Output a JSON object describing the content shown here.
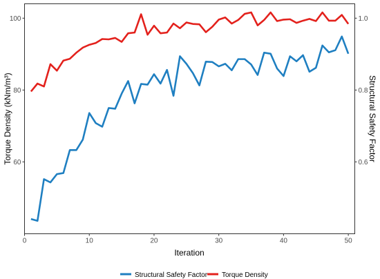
{
  "chart_data": {
    "type": "line",
    "xlabel": "Iteration",
    "ylabel": "Torque Density (kNm/m³)",
    "y2label": "Structural Safety Factor",
    "xlim": [
      0,
      51
    ],
    "ylim": [
      40,
      104
    ],
    "y2lim": [
      0.4,
      1.04
    ],
    "x_ticks": [
      "0",
      "10",
      "20",
      "30",
      "40",
      "50"
    ],
    "y_ticks": [
      "60",
      "80",
      "100"
    ],
    "y2_ticks": [
      "0.6",
      "0.8",
      "1.0"
    ],
    "grid": false,
    "legend_position": "bottom",
    "x": [
      1,
      2,
      3,
      4,
      5,
      6,
      7,
      8,
      9,
      10,
      11,
      12,
      13,
      14,
      15,
      16,
      17,
      18,
      19,
      20,
      21,
      22,
      23,
      24,
      25,
      26,
      27,
      28,
      29,
      30,
      31,
      32,
      33,
      34,
      35,
      36,
      37,
      38,
      39,
      40,
      41,
      42,
      43,
      44,
      45,
      46,
      47,
      48,
      49,
      50
    ],
    "series": [
      {
        "name": "Structural Safety Factor",
        "axis": "right",
        "color": "#1f7fc1",
        "values": [
          0.441,
          0.436,
          0.552,
          0.543,
          0.566,
          0.569,
          0.633,
          0.633,
          0.662,
          0.736,
          0.708,
          0.698,
          0.75,
          0.748,
          0.79,
          0.825,
          0.763,
          0.817,
          0.815,
          0.844,
          0.818,
          0.856,
          0.784,
          0.894,
          0.873,
          0.847,
          0.813,
          0.879,
          0.878,
          0.866,
          0.873,
          0.855,
          0.886,
          0.886,
          0.871,
          0.842,
          0.904,
          0.901,
          0.86,
          0.839,
          0.894,
          0.88,
          0.897,
          0.851,
          0.862,
          0.924,
          0.905,
          0.911,
          0.949,
          0.901
        ]
      },
      {
        "name": "Torque Density",
        "axis": "left",
        "color": "#e3211c",
        "values": [
          79.6,
          81.8,
          81.0,
          87.2,
          85.4,
          88.2,
          88.7,
          90.4,
          91.8,
          92.6,
          93.1,
          94.2,
          94.1,
          94.5,
          93.4,
          95.8,
          96.0,
          101.1,
          95.4,
          97.9,
          95.8,
          96.0,
          98.5,
          97.2,
          98.8,
          98.4,
          98.3,
          96.1,
          97.6,
          99.6,
          100.2,
          98.5,
          99.5,
          101.2,
          101.6,
          98.0,
          99.5,
          101.6,
          99.2,
          99.6,
          99.7,
          98.7,
          99.3,
          99.8,
          99.2,
          101.6,
          99.3,
          99.3,
          100.9,
          98.4
        ]
      }
    ]
  }
}
